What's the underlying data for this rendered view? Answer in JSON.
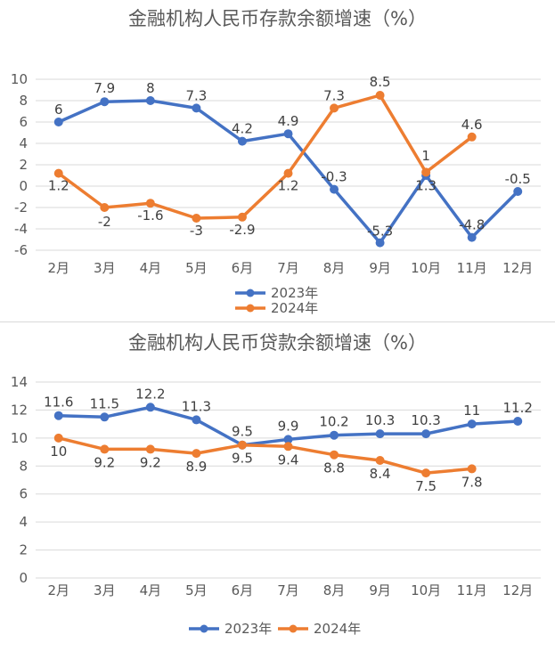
{
  "chart_data": [
    {
      "type": "line",
      "title": "金融机构人民币存款余额增速（%）",
      "categories": [
        "2月",
        "3月",
        "4月",
        "5月",
        "6月",
        "7月",
        "8月",
        "9月",
        "10月",
        "11月",
        "12月"
      ],
      "ylim": [
        -6,
        10
      ],
      "yticks": [
        -6,
        -4,
        -2,
        0,
        2,
        4,
        6,
        8,
        10
      ],
      "grid": true,
      "legend_position": "bottom",
      "series": [
        {
          "name": "2023年",
          "color": "#4472C4",
          "values": [
            6,
            7.9,
            8,
            7.3,
            4.2,
            4.9,
            -0.3,
            -5.3,
            1,
            -4.8,
            -0.5
          ],
          "labels": [
            "6",
            "7.9",
            "8",
            "7.3",
            "4.2",
            "4.9",
            "-0.3",
            "-5.3",
            "1",
            "-4.8",
            "-0.5"
          ]
        },
        {
          "name": "2024年",
          "color": "#ED7D31",
          "values": [
            1.2,
            -2,
            -1.6,
            -3,
            -2.9,
            1.2,
            7.3,
            8.5,
            1.3,
            4.6,
            null
          ],
          "labels": [
            "1.2",
            "-2",
            "-1.6",
            "-3",
            "-2.9",
            "1.2",
            "7.3",
            "8.5",
            "1.3",
            "4.6",
            ""
          ]
        }
      ]
    },
    {
      "type": "line",
      "title": "金融机构人民币贷款余额增速（%）",
      "categories": [
        "2月",
        "3月",
        "4月",
        "5月",
        "6月",
        "7月",
        "8月",
        "9月",
        "10月",
        "11月",
        "12月"
      ],
      "ylim": [
        0,
        14
      ],
      "yticks": [
        0,
        2,
        4,
        6,
        8,
        10,
        12,
        14
      ],
      "grid": true,
      "legend_position": "bottom",
      "series": [
        {
          "name": "2023年",
          "color": "#4472C4",
          "values": [
            11.6,
            11.5,
            12.2,
            11.3,
            9.5,
            9.9,
            10.2,
            10.3,
            10.3,
            11,
            11.2
          ],
          "labels": [
            "11.6",
            "11.5",
            "12.2",
            "11.3",
            "9.5",
            "9.9",
            "10.2",
            "10.3",
            "10.3",
            "11",
            "11.2"
          ]
        },
        {
          "name": "2024年",
          "color": "#ED7D31",
          "values": [
            10,
            9.2,
            9.2,
            8.9,
            9.5,
            9.4,
            8.8,
            8.4,
            7.5,
            7.8,
            null
          ],
          "labels": [
            "10",
            "9.2",
            "9.2",
            "8.9",
            "9.5",
            "9.4",
            "8.8",
            "8.4",
            "7.5",
            "7.8",
            ""
          ]
        }
      ]
    }
  ]
}
